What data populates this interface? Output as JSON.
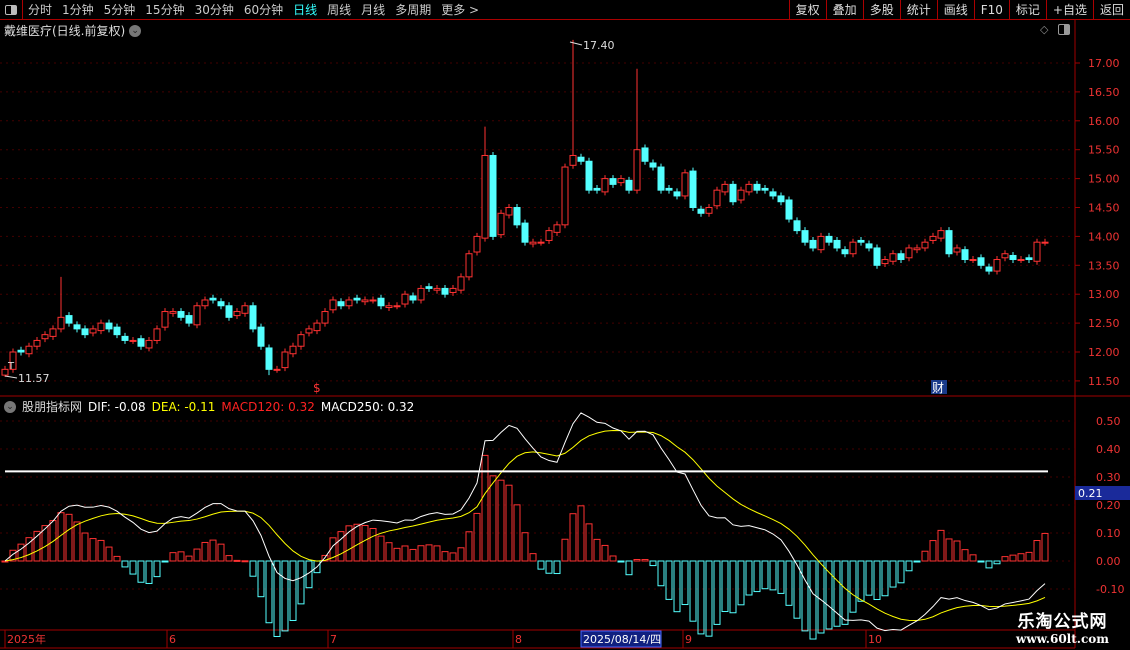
{
  "toolbar": {
    "periods": [
      {
        "label": "分时"
      },
      {
        "label": "1分钟"
      },
      {
        "label": "5分钟"
      },
      {
        "label": "15分钟"
      },
      {
        "label": "30分钟"
      },
      {
        "label": "60分钟"
      },
      {
        "label": "日线",
        "active": true
      },
      {
        "label": "周线"
      },
      {
        "label": "月线"
      },
      {
        "label": "多周期"
      },
      {
        "label": "更多 >"
      }
    ],
    "right": [
      "复权",
      "叠加",
      "多股",
      "统计",
      "画线",
      "F10",
      "标记",
      "+自选",
      "返回"
    ]
  },
  "title": "戴维医疗(日线.前复权)",
  "price_axis": {
    "ticks": [
      "17.00",
      "16.50",
      "16.00",
      "15.50",
      "15.00",
      "14.50",
      "14.00",
      "13.50",
      "13.00",
      "12.50",
      "12.00",
      "11.50"
    ]
  },
  "annotations": {
    "high_label": "17.40",
    "low_label": "11.57",
    "t_mark": "T",
    "dollar_mark": "$",
    "finance_mark": "财"
  },
  "indicator": {
    "name": "股朋指标网",
    "dif": "DIF: -0.08",
    "dea": "DEA: -0.11",
    "macd120": "MACD120: 0.32",
    "macd250": "MACD250: 0.32",
    "current_label": "0.21",
    "ticks": [
      "0.50",
      "0.40",
      "0.30",
      "0.20",
      "0.10",
      "0.00",
      "-0.10"
    ]
  },
  "date_axis": {
    "labels": [
      "2025年",
      "6",
      "7",
      "8",
      "9",
      "10"
    ],
    "cursor": "2025/08/14/四"
  },
  "watermark": {
    "name": "乐淘公式网",
    "url": "www.60lt.com"
  },
  "colors": {
    "up": "#ff3232",
    "down": "#54ffff",
    "dif": "#ffffff",
    "dea": "#ffff00",
    "grid": "#a00000"
  },
  "chart_data": {
    "type": "candlestick",
    "ylim": [
      11.3,
      17.5
    ],
    "closes": [
      11.7,
      12.0,
      12.0,
      12.1,
      12.2,
      12.3,
      12.4,
      12.6,
      12.5,
      12.4,
      12.3,
      12.4,
      12.5,
      12.4,
      12.3,
      12.2,
      12.2,
      12.1,
      12.2,
      12.4,
      12.7,
      12.7,
      12.6,
      12.5,
      12.8,
      12.9,
      12.9,
      12.8,
      12.6,
      12.7,
      12.8,
      12.4,
      12.1,
      11.7,
      11.7,
      12.0,
      12.1,
      12.3,
      12.4,
      12.5,
      12.7,
      12.9,
      12.8,
      12.9,
      12.9,
      12.9,
      12.9,
      12.8,
      12.8,
      12.8,
      13.0,
      12.9,
      13.1,
      13.1,
      13.1,
      13.0,
      13.1,
      13.3,
      13.7,
      14.0,
      15.4,
      14.0,
      14.4,
      14.5,
      14.2,
      13.9,
      13.9,
      13.9,
      14.1,
      14.2,
      15.2,
      15.4,
      15.3,
      14.8,
      14.8,
      15.0,
      14.9,
      15.0,
      14.8,
      15.5,
      15.3,
      15.2,
      14.8,
      14.8,
      14.7,
      15.1,
      14.5,
      14.4,
      14.5,
      14.8,
      14.9,
      14.6,
      14.8,
      14.9,
      14.8,
      14.8,
      14.7,
      14.6,
      14.3,
      14.1,
      13.9,
      13.8,
      14.0,
      13.9,
      13.8,
      13.7,
      13.9,
      13.9,
      13.8,
      13.5,
      13.6,
      13.7,
      13.6,
      13.8,
      13.8,
      13.9,
      14.0,
      14.1,
      13.7,
      13.8,
      13.6,
      13.6,
      13.5,
      13.4,
      13.6,
      13.7,
      13.6,
      13.6,
      13.6,
      13.9,
      13.9
    ],
    "spike_highs": {
      "7": 13.3,
      "60": 15.9,
      "71": 17.4,
      "79": 16.9
    },
    "spike_lows": {
      "0": 11.57,
      "33": 11.6
    },
    "macd_ylim": [
      -0.22,
      0.58
    ],
    "reference_line": 0.32
  }
}
